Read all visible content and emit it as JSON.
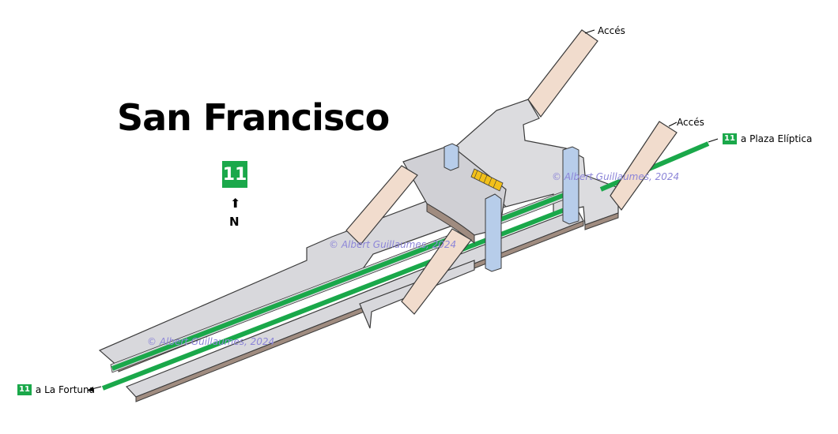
{
  "station": {
    "name": "San Francisco",
    "line_number": "11"
  },
  "compass": {
    "arrow": "⬆",
    "label": "N"
  },
  "destinations": [
    {
      "line": "11",
      "text": "a Plaza Elíptica"
    },
    {
      "line": "11",
      "text": "a La Fortuna"
    }
  ],
  "accesses": [
    {
      "label": "Accés"
    },
    {
      "label": "Accés"
    }
  ],
  "watermarks": [
    "© Albert Guillaumes, 2024",
    "© Albert Guillaumes, 2024",
    "© Albert Guillaumes, 2024"
  ],
  "colors": {
    "line": "#1aa84a",
    "floor": "#d8d8dc",
    "floor_edge": "#8f8f95",
    "wall": "#a08c80",
    "access": "#f1dccd",
    "pillar": "#b7cdea",
    "escalator": "#f2c01a",
    "watermark": "#8d86d8"
  }
}
